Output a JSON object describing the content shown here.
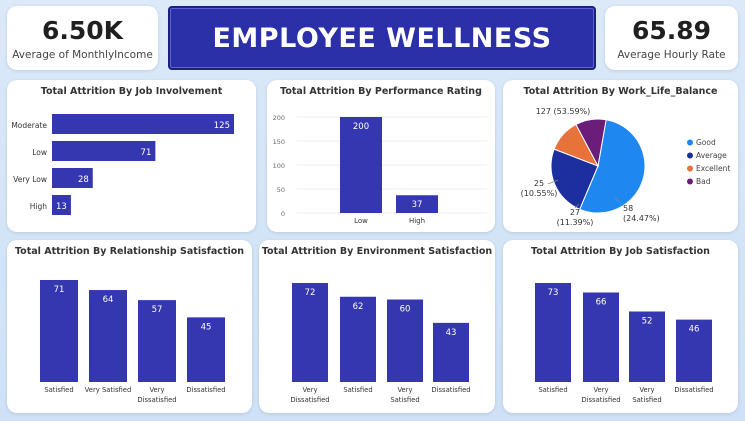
{
  "kpis": {
    "left": {
      "value": "6.50K",
      "label": "Average of MonthlyIncome"
    },
    "right": {
      "value": "65.89",
      "label": "Average Hourly Rate"
    }
  },
  "banner": {
    "title": "EMPLOYEE WELLNESS"
  },
  "colors": {
    "bar": "#3537b0",
    "good": "#1e88f0",
    "average": "#1d2f9e",
    "excellent": "#e8733a",
    "bad": "#6b1d7a"
  },
  "chart_data": [
    {
      "id": "job-involvement",
      "type": "bar",
      "orientation": "horizontal",
      "title": "Total Attrition By Job Involvement",
      "categories": [
        "Moderate",
        "Low",
        "Very Low",
        "High"
      ],
      "values": [
        125,
        71,
        28,
        13
      ]
    },
    {
      "id": "performance-rating",
      "type": "bar",
      "title": "Total Attrition By Performance Rating",
      "categories": [
        "Low",
        "High"
      ],
      "values": [
        200,
        37
      ],
      "ylim": [
        0,
        220
      ],
      "yticks": [
        0,
        50,
        100,
        150,
        200
      ]
    },
    {
      "id": "work-life-balance",
      "type": "pie",
      "title": "Total Attrition By Work_Life_Balance",
      "categories": [
        "Good",
        "Average",
        "Excellent",
        "Bad"
      ],
      "values": [
        127,
        58,
        27,
        25
      ],
      "labels": [
        "127 (53.59%)",
        "58 (24.47%)",
        "27 (11.39%)",
        "25 (10.55%)"
      ],
      "legend": "right"
    },
    {
      "id": "relationship-satisfaction",
      "type": "bar",
      "title": "Total Attrition By Relationship Satisfaction",
      "categories": [
        "Satisfied",
        "Very Satisfied",
        "Very Dissatisfied",
        "Dissatisfied"
      ],
      "values": [
        71,
        64,
        57,
        45
      ]
    },
    {
      "id": "environment-satisfaction",
      "type": "bar",
      "title": "Total Attrition By Environment Satisfaction",
      "categories": [
        "Very Dissatisfied",
        "Satisfied",
        "Very Satisfied",
        "Dissatisfied"
      ],
      "values": [
        72,
        62,
        60,
        43
      ]
    },
    {
      "id": "job-satisfaction",
      "type": "bar",
      "title": "Total Attrition By Job Satisfaction",
      "categories": [
        "Satisfied",
        "Very Dissatisfied",
        "Very Satisfied",
        "Dissatisfied"
      ],
      "values": [
        73,
        66,
        52,
        46
      ]
    }
  ]
}
